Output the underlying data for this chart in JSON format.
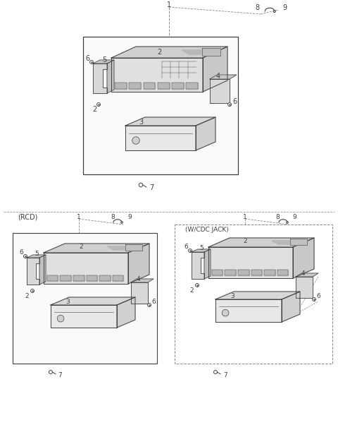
{
  "bg_color": "#ffffff",
  "lc": "#404040",
  "lc_light": "#888888",
  "rcd_label": "(RCD)",
  "wcdc_label": "(W/CDC JACK)",
  "fig_w": 4.8,
  "fig_h": 6.19,
  "dpi": 100
}
